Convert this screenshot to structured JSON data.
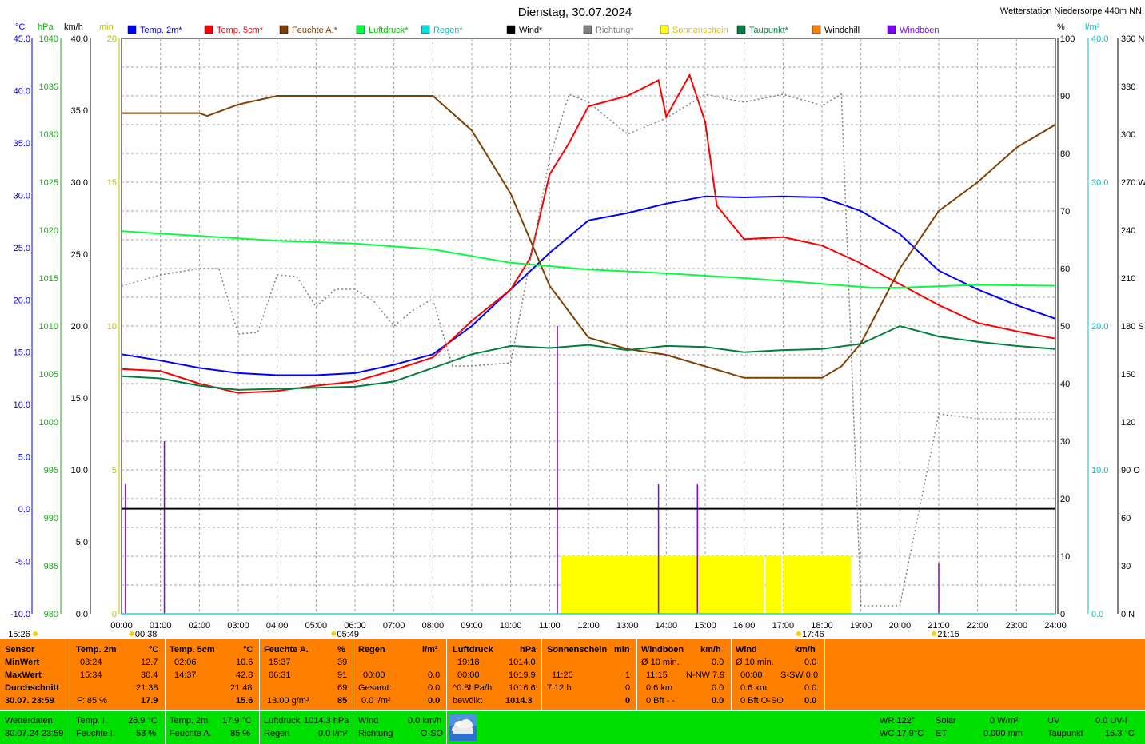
{
  "header": {
    "title": "Dienstag, 30.07.2024",
    "station": "Wetterstation Niedersorpe 440m NN"
  },
  "units": {
    "left": [
      "°C",
      "hPa",
      "km/h",
      "min"
    ],
    "right": [
      "%",
      "l/m²"
    ]
  },
  "legend": [
    {
      "label": "Temp. 2m*",
      "color": "#0000ff"
    },
    {
      "label": "Temp. 5cm*",
      "color": "#ff0000"
    },
    {
      "label": "Feuchte A.*",
      "color": "#804000"
    },
    {
      "label": "Luftdruck*",
      "color": "#00ff40"
    },
    {
      "label": "Regen*",
      "color": "#00e0e0"
    },
    {
      "label": "Wind*",
      "color": "#000000"
    },
    {
      "label": "Richtung*",
      "color": "#808080"
    },
    {
      "label": "Sonnenschein",
      "color": "#ffff00"
    },
    {
      "label": "Taupunkt*",
      "color": "#008040"
    },
    {
      "label": "Windchill",
      "color": "#ff8000"
    },
    {
      "label": "Windböen",
      "color": "#8000ff"
    }
  ],
  "axis_labels": {
    "temp": [
      "45.0",
      "40.0",
      "35.0",
      "30.0",
      "25.0",
      "20.0",
      "15.0",
      "10.0",
      "5.0",
      "0.0",
      "-5.0",
      "-10.0"
    ],
    "pressure": [
      "1040",
      "1035",
      "1030",
      "1025",
      "1020",
      "1015",
      "1010",
      "1005",
      "1000",
      "995",
      "990",
      "985",
      "980"
    ],
    "kmh": [
      "40.0",
      "35.0",
      "30.0",
      "25.0",
      "20.0",
      "15.0",
      "10.0",
      "5.0",
      "0.0"
    ],
    "min": [
      "20",
      "15",
      "10",
      "5",
      "0"
    ],
    "percent": [
      "100",
      "90",
      "80",
      "70",
      "60",
      "50",
      "40",
      "30",
      "20",
      "10",
      "0"
    ],
    "rain": [
      "40.0",
      "30.0",
      "20.0",
      "10.0",
      "0.0"
    ],
    "direction": [
      "360 N",
      "330",
      "300",
      "270 W",
      "240",
      "210",
      "180 S",
      "150",
      "120",
      "90 O",
      "60",
      "30",
      "0 N"
    ],
    "hours": [
      "00:00",
      "01:00",
      "02:00",
      "03:00",
      "04:00",
      "05:00",
      "06:00",
      "07:00",
      "08:00",
      "09:00",
      "10:00",
      "11:00",
      "12:00",
      "13:00",
      "14:00",
      "15:00",
      "16:00",
      "17:00",
      "18:00",
      "19:00",
      "20:00",
      "21:00",
      "22:00",
      "23:00",
      "24:00"
    ]
  },
  "time_marks": [
    {
      "label": "15:26",
      "hour": -2.8
    },
    {
      "label": "00:38",
      "hour": 0.63
    },
    {
      "label": "05:49",
      "hour": 5.82
    },
    {
      "label": "17:46",
      "hour": 17.77
    },
    {
      "label": "21:15",
      "hour": 21.25
    }
  ],
  "chart_data": {
    "type": "line",
    "x_unit": "hour",
    "xlim": [
      0,
      24
    ],
    "axes": {
      "temp_c": [
        -10,
        45
      ],
      "pressure_hpa": [
        980,
        1040
      ],
      "kmh": [
        0,
        40
      ],
      "percent": [
        0,
        100
      ],
      "rain_lm2": [
        0,
        40
      ],
      "direction_deg": [
        0,
        360
      ],
      "sun_min": [
        0,
        20
      ]
    },
    "series": [
      {
        "name": "Temp. 2m*",
        "axis": "temp_c",
        "points": [
          [
            0,
            14.8
          ],
          [
            1,
            14.2
          ],
          [
            2,
            13.5
          ],
          [
            3,
            13.0
          ],
          [
            4,
            12.8
          ],
          [
            5,
            12.8
          ],
          [
            6,
            13.0
          ],
          [
            7,
            13.8
          ],
          [
            8,
            14.8
          ],
          [
            9,
            17.5
          ],
          [
            10,
            21.0
          ],
          [
            11,
            24.5
          ],
          [
            12,
            27.6
          ],
          [
            13,
            28.3
          ],
          [
            14,
            29.2
          ],
          [
            15,
            29.9
          ],
          [
            16,
            29.8
          ],
          [
            17,
            29.9
          ],
          [
            18,
            29.8
          ],
          [
            19,
            28.5
          ],
          [
            20,
            26.3
          ],
          [
            21,
            22.8
          ],
          [
            22,
            21.0
          ],
          [
            23,
            19.5
          ],
          [
            24,
            18.2
          ]
        ]
      },
      {
        "name": "Temp. 5cm*",
        "axis": "temp_c",
        "points": [
          [
            0,
            13.4
          ],
          [
            1,
            13.2
          ],
          [
            2,
            12.0
          ],
          [
            3,
            11.1
          ],
          [
            4,
            11.3
          ],
          [
            5,
            11.8
          ],
          [
            6,
            12.2
          ],
          [
            7,
            13.3
          ],
          [
            8,
            14.5
          ],
          [
            9,
            18.0
          ],
          [
            10,
            21.0
          ],
          [
            10.5,
            24.0
          ],
          [
            11,
            32.0
          ],
          [
            11.5,
            35.0
          ],
          [
            12,
            38.5
          ],
          [
            13,
            39.5
          ],
          [
            13.8,
            41.0
          ],
          [
            14,
            37.5
          ],
          [
            14.6,
            41.5
          ],
          [
            15,
            37.0
          ],
          [
            15.3,
            29.0
          ],
          [
            16,
            25.8
          ],
          [
            17,
            26.0
          ],
          [
            18,
            25.2
          ],
          [
            19,
            23.5
          ],
          [
            20,
            21.5
          ],
          [
            21,
            19.5
          ],
          [
            22,
            17.8
          ],
          [
            23,
            17.0
          ],
          [
            24,
            16.3
          ]
        ]
      },
      {
        "name": "Feuchte A.*",
        "axis": "percent",
        "points": [
          [
            0,
            87
          ],
          [
            2,
            87
          ],
          [
            2.2,
            86.5
          ],
          [
            3,
            88.5
          ],
          [
            4,
            90
          ],
          [
            6,
            90
          ],
          [
            7,
            90
          ],
          [
            8,
            90
          ],
          [
            9,
            84
          ],
          [
            10,
            73
          ],
          [
            11,
            57
          ],
          [
            12,
            48
          ],
          [
            13,
            46
          ],
          [
            14,
            45
          ],
          [
            15,
            43
          ],
          [
            16,
            41
          ],
          [
            17,
            41
          ],
          [
            18,
            41
          ],
          [
            18.5,
            43
          ],
          [
            19,
            47
          ],
          [
            20,
            60
          ],
          [
            21,
            70
          ],
          [
            22,
            75
          ],
          [
            23,
            81
          ],
          [
            24,
            85
          ]
        ]
      },
      {
        "name": "Luftdruck*",
        "axis": "pressure_hpa",
        "points": [
          [
            0,
            1019.9
          ],
          [
            2,
            1019.4
          ],
          [
            4,
            1018.9
          ],
          [
            6,
            1018.6
          ],
          [
            8,
            1018.0
          ],
          [
            10,
            1016.6
          ],
          [
            12,
            1015.9
          ],
          [
            14,
            1015.5
          ],
          [
            16,
            1015.0
          ],
          [
            18,
            1014.4
          ],
          [
            19.3,
            1014.0
          ],
          [
            20,
            1014.0
          ],
          [
            22,
            1014.3
          ],
          [
            24,
            1014.2
          ]
        ]
      },
      {
        "name": "Taupunkt*",
        "axis": "temp_c",
        "points": [
          [
            0,
            12.7
          ],
          [
            1,
            12.5
          ],
          [
            2,
            11.8
          ],
          [
            3,
            11.4
          ],
          [
            4,
            11.5
          ],
          [
            5,
            11.6
          ],
          [
            6,
            11.7
          ],
          [
            7,
            12.2
          ],
          [
            8,
            13.5
          ],
          [
            9,
            14.8
          ],
          [
            10,
            15.6
          ],
          [
            11,
            15.4
          ],
          [
            12,
            15.7
          ],
          [
            13,
            15.2
          ],
          [
            14,
            15.6
          ],
          [
            15,
            15.5
          ],
          [
            16,
            15.0
          ],
          [
            17,
            15.2
          ],
          [
            18,
            15.3
          ],
          [
            19,
            15.8
          ],
          [
            20,
            17.5
          ],
          [
            21,
            16.5
          ],
          [
            22,
            16.0
          ],
          [
            23,
            15.6
          ],
          [
            24,
            15.3
          ]
        ]
      },
      {
        "name": "Wind*",
        "axis": "kmh",
        "points": [
          [
            0,
            7.3
          ],
          [
            24,
            7.3
          ]
        ]
      },
      {
        "name": "Regen*",
        "axis": "rain_lm2",
        "points": [
          [
            0,
            0
          ],
          [
            24,
            0
          ]
        ]
      },
      {
        "name": "Richtung*",
        "axis": "direction_deg",
        "points": [
          [
            0,
            205
          ],
          [
            1,
            212
          ],
          [
            2,
            216
          ],
          [
            2.5,
            216
          ],
          [
            3,
            175
          ],
          [
            3.5,
            176
          ],
          [
            4,
            212
          ],
          [
            4.5,
            211
          ],
          [
            5,
            192
          ],
          [
            5.5,
            203
          ],
          [
            6,
            203
          ],
          [
            6.5,
            195
          ],
          [
            7,
            180
          ],
          [
            7.5,
            190
          ],
          [
            8,
            197
          ],
          [
            8.5,
            155
          ],
          [
            9,
            155
          ],
          [
            10,
            157
          ],
          [
            11,
            285
          ],
          [
            11.5,
            325
          ],
          [
            12,
            320
          ],
          [
            13,
            300
          ],
          [
            14,
            310
          ],
          [
            15,
            325
          ],
          [
            16,
            320
          ],
          [
            17,
            325
          ],
          [
            18,
            318
          ],
          [
            18.5,
            325
          ],
          [
            19,
            5
          ],
          [
            20,
            5
          ],
          [
            21,
            125
          ],
          [
            22,
            122
          ],
          [
            24,
            122
          ]
        ]
      }
    ],
    "sunshine": [
      [
        11.3,
        12.4
      ],
      [
        12.4,
        16.5
      ],
      [
        16.55,
        16.95
      ],
      [
        17,
        18.75
      ]
    ],
    "gusts": [
      [
        0.1,
        9
      ],
      [
        1.1,
        12
      ],
      [
        11.2,
        20
      ],
      [
        13.8,
        9
      ],
      [
        14.8,
        9
      ],
      [
        21,
        3.5
      ]
    ]
  },
  "stats": {
    "col_sensor": {
      "header": "Sensor",
      "r1": "MinWert",
      "r2": "MaxWert",
      "r3": "Durchschnitt",
      "r4": "30.07. 23:59"
    },
    "col_temp2m": {
      "header": "Temp. 2m",
      "unit": "°C",
      "min_time": "03:24",
      "min_val": "12.7",
      "max_time": "15:34",
      "max_val": "30.4",
      "avg": "21.38",
      "cur_label": "F: 85 %",
      "cur": "17.9"
    },
    "col_temp5cm": {
      "header": "Temp. 5cm",
      "unit": "°C",
      "min_time": "02:06",
      "min_val": "10.6",
      "max_time": "14:37",
      "max_val": "42.8",
      "avg": "21.48",
      "cur": "15.6"
    },
    "col_feuchte": {
      "header": "Feuchte A.",
      "unit": "%",
      "min_time": "15:37",
      "min_val": "39",
      "max_time": "06:31",
      "max_val": "91",
      "avg": "69",
      "cur_label": "13.00 g/m³",
      "cur": "85"
    },
    "col_regen": {
      "header": "Regen",
      "unit": "l/m²",
      "r2_time": "00:00",
      "r2_val": "0.0",
      "r3_label": "Gesamt:",
      "r3_val": "0.0",
      "cur_label": "0.0 l/m²",
      "cur": "0.0"
    },
    "col_luftdruck": {
      "header": "Luftdruck",
      "unit": "hPa",
      "min_time": "19:18",
      "min_val": "1014.0",
      "max_time": "00:00",
      "max_val": "1019.9",
      "trend_label": "^0.8hPa/h",
      "trend_val": "1016.6",
      "cur_label": "bewölkt",
      "cur": "1014.3"
    },
    "col_sonne": {
      "header": "Sonnenschein",
      "unit": "min",
      "r2_time": "11:20",
      "r2_val": "1",
      "r3_label": "7:12 h",
      "r3_val": "0",
      "cur": "0"
    },
    "col_boeen": {
      "header": "Windböen",
      "unit": "km/h",
      "r1_label": "Ø 10 min.",
      "r1_val": "0.0",
      "r2_time": "11:15",
      "r2_label": "N-NW 7.9",
      "r3_label": "0.6 km",
      "r3_val": "0.0",
      "cur_label": "0 Bft - -",
      "cur": "0.0"
    },
    "col_wind": {
      "header": "Wind",
      "unit": "km/h",
      "r1_label": "Ø 10 min.",
      "r1_val": "0.0",
      "r2_time": "00:00",
      "r2_label": "S-SW 0.0",
      "r3_label": "0.6 km",
      "r3_val": "0.0",
      "cur_label": "0 Bft O-SO",
      "cur": "0.0"
    }
  },
  "current": {
    "wetterdaten": "Wetterdaten",
    "datetime": "30.07.24 23:59",
    "temp_i_label": "Temp. I.",
    "temp_i": "26.9 °C",
    "feuchte_i_label": "Feuchte I.",
    "feuchte_i": "53 %",
    "temp_2m_label": "Temp. 2m",
    "temp_2m": "17.9 °C",
    "feuchte_a_label": "Feuchte A.",
    "feuchte_a": "85 %",
    "luftdruck_label": "Luftdruck",
    "luftdruck": "1014.3 hPa",
    "regen_label": "Regen",
    "regen": "0.0 l/m²",
    "wind_label": "Wind",
    "wind": "0.0 km/h",
    "richtung_label": "Richtung",
    "richtung": "O-SO",
    "wr": "WR 122°",
    "wc": "WC 17.9°C",
    "solar_label": "Solar",
    "solar": "0 W/m²",
    "et_label": "ET",
    "et": "0.000 mm",
    "uv_label": "UV",
    "uv": "0.0 UV-I",
    "taupunkt_label": "Taupunkt",
    "taupunkt": "15.3 °C"
  }
}
